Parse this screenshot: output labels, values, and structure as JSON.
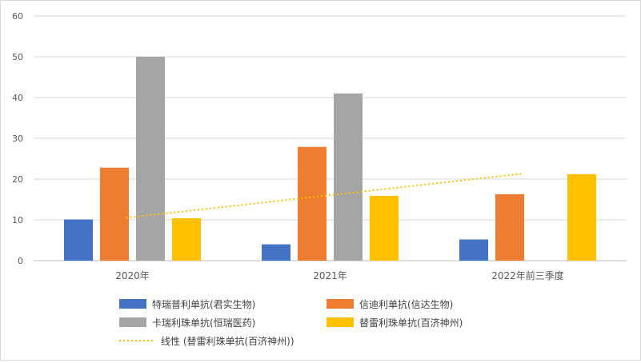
{
  "chart_data": {
    "type": "bar",
    "title": "",
    "xlabel": "",
    "ylabel": "",
    "ylim": [
      0,
      60
    ],
    "yticks": [
      0,
      10,
      20,
      30,
      40,
      50,
      60
    ],
    "grid": true,
    "legend_position": "bottom",
    "categories": [
      "2020年",
      "2021年",
      "2022年前三季度"
    ],
    "series": [
      {
        "name": "特瑞普利单抗(君实生物)",
        "color": "#4472C4",
        "values": [
          10.1,
          4.0,
          5.2
        ]
      },
      {
        "name": "信迪利单抗(信达生物)",
        "color": "#ED7D31",
        "values": [
          22.8,
          27.9,
          16.3
        ]
      },
      {
        "name": "卡瑞利珠单抗(恒瑞医药)",
        "color": "#A5A5A5",
        "values": [
          50.0,
          41.0,
          null
        ]
      },
      {
        "name": "替雷利珠单抗(百济神州)",
        "color": "#FFC000",
        "values": [
          10.4,
          15.9,
          21.2
        ]
      }
    ],
    "trendline": {
      "name": "线性 (替雷利珠单抗(百济神州))",
      "color": "#FFC000",
      "series": "替雷利珠单抗(百济神州)",
      "type": "linear",
      "values": [
        10.5,
        15.9,
        21.3
      ]
    }
  }
}
